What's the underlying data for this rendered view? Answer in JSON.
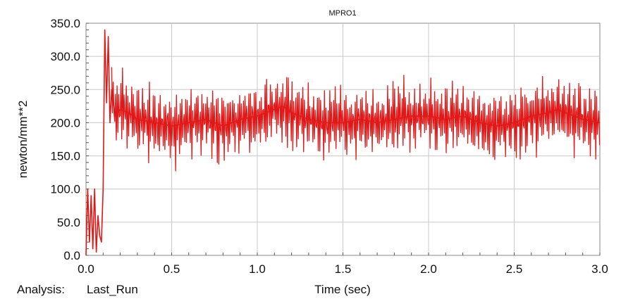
{
  "chart_data": {
    "type": "line",
    "title": "MPRO1",
    "xlabel": "Time (sec)",
    "ylabel": "newton/mm**2",
    "xlim": [
      0.0,
      3.0
    ],
    "ylim": [
      0.0,
      350.0
    ],
    "x_ticks": [
      "0.0",
      "0.5",
      "1.0",
      "1.5",
      "2.0",
      "2.5",
      "3.0"
    ],
    "y_ticks": [
      "0.0",
      "50.0",
      "100.0",
      "150.0",
      "200.0",
      "250.0",
      "300.0",
      "350.0"
    ],
    "grid": true,
    "series_color": "#e01818",
    "series": [
      {
        "x": [
          0.0,
          0.01,
          0.02,
          0.03,
          0.04,
          0.05,
          0.06,
          0.07,
          0.08,
          0.09,
          0.1,
          0.11,
          0.12,
          0.13,
          0.14,
          0.15,
          0.17,
          0.2,
          0.25,
          0.3,
          0.4,
          0.5,
          0.6,
          0.7,
          0.8,
          0.9,
          1.0,
          1.1,
          1.15,
          1.2,
          1.3,
          1.4,
          1.5,
          1.6,
          1.7,
          1.8,
          1.9,
          2.0,
          2.1,
          2.2,
          2.3,
          2.4,
          2.5,
          2.6,
          2.7,
          2.75,
          2.8,
          2.9,
          3.0
        ],
        "values": [
          0,
          100,
          20,
          90,
          10,
          100,
          5,
          60,
          30,
          20,
          100,
          340,
          230,
          330,
          200,
          250,
          210,
          220,
          215,
          205,
          200,
          195,
          200,
          205,
          195,
          205,
          210,
          220,
          225,
          215,
          205,
          200,
          200,
          205,
          200,
          205,
          210,
          210,
          205,
          210,
          200,
          195,
          200,
          210,
          215,
          220,
          215,
          205,
          200
        ]
      }
    ]
  },
  "footer": {
    "analysis_label": "Analysis:",
    "analysis_value": "Last_Run"
  }
}
